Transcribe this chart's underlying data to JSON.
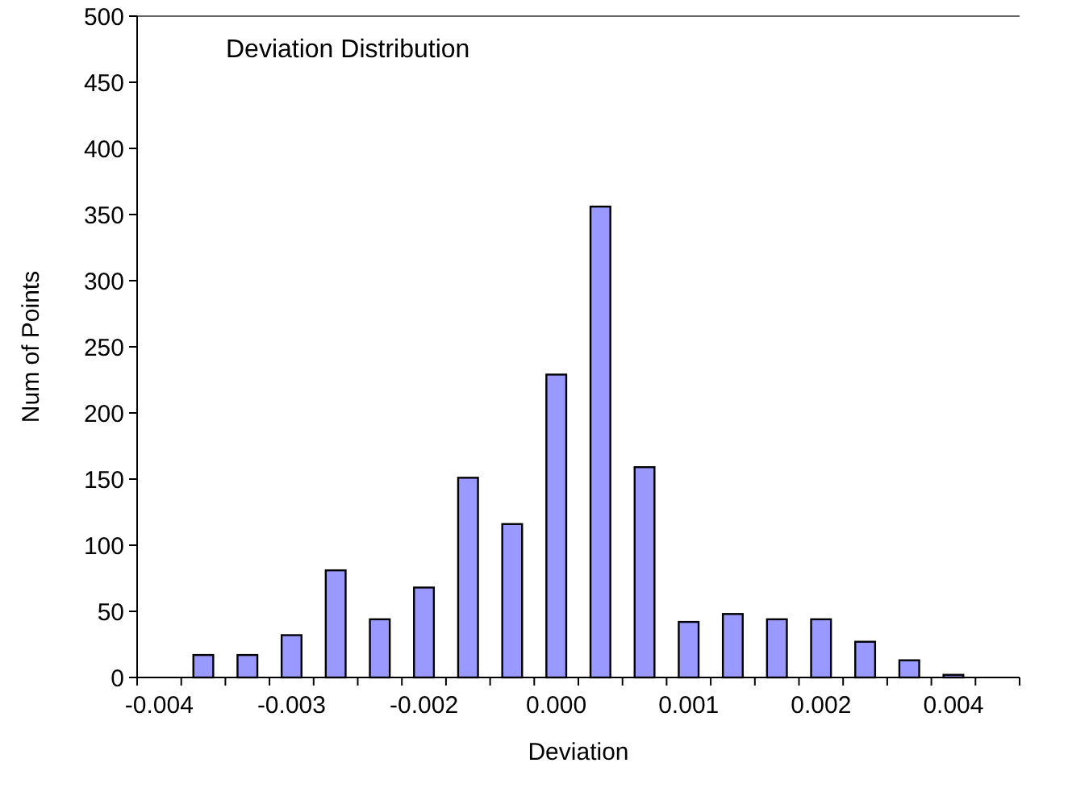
{
  "chart_data": {
    "type": "bar",
    "title": "Deviation Distribution",
    "xlabel": "Deviation",
    "ylabel": "Num of Points",
    "categories": [
      "-0.004",
      null,
      null,
      "-0.003",
      null,
      null,
      "-0.002",
      null,
      null,
      "0.000",
      null,
      null,
      "0.001",
      null,
      null,
      "0.002",
      null,
      null,
      "0.004",
      null
    ],
    "values": [
      0,
      17,
      17,
      32,
      81,
      44,
      68,
      151,
      116,
      229,
      356,
      159,
      42,
      48,
      44,
      44,
      27,
      13,
      2,
      0
    ],
    "color": "#9999ff",
    "ylim": [
      0,
      500
    ],
    "yticks": [
      0,
      50,
      100,
      150,
      200,
      250,
      300,
      350,
      400,
      450,
      500
    ],
    "grid": false
  }
}
